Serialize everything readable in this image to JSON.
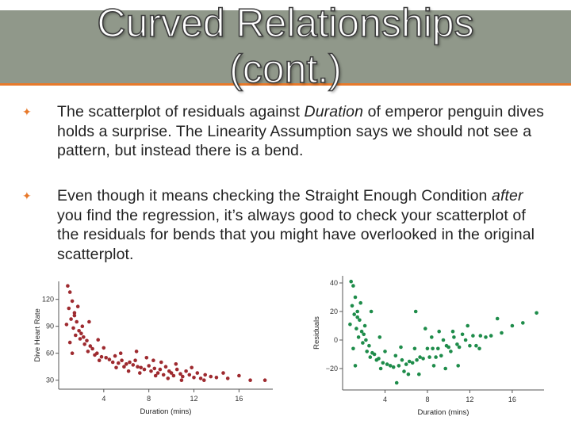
{
  "slide": {
    "title_line1": "Curved Relationships",
    "title_line2": "(cont.)",
    "colors": {
      "title_band": "#90988a",
      "accent": "#e8792a",
      "left_points": "#9e2a2f",
      "right_points": "#1e8c4a"
    },
    "bullet_icon": "scroll-bullet-icon",
    "bullet1": {
      "part1": "The scatterplot of residuals against ",
      "italic": "Duration",
      "part2": " of emperor penguin dives holds a surprise.  The Linearity Assumption says we should not see a pattern, but instead there is a bend."
    },
    "bullet2": {
      "part1": "Even though it means checking the Straight Enough Condition ",
      "italic": "after",
      "part2": " you find the regression, it’s always good to check your scatterplot of the residuals for bends that you might have overlooked in the original scatterplot."
    }
  },
  "chart_data": [
    {
      "type": "scatter",
      "title": "",
      "xlabel": "Duration (mins)",
      "ylabel": "Dive Heart Rate",
      "xlim": [
        0,
        19
      ],
      "ylim": [
        20,
        140
      ],
      "xticks": [
        "4",
        "8",
        "12",
        "16"
      ],
      "yticks": [
        "30",
        "60",
        "90",
        "120"
      ],
      "points": [
        [
          0.8,
          135
        ],
        [
          1.0,
          128
        ],
        [
          1.2,
          118
        ],
        [
          0.9,
          110
        ],
        [
          1.4,
          105
        ],
        [
          1.1,
          98
        ],
        [
          1.6,
          95
        ],
        [
          0.7,
          92
        ],
        [
          1.3,
          88
        ],
        [
          1.8,
          85
        ],
        [
          2.0,
          82
        ],
        [
          1.5,
          80
        ],
        [
          2.2,
          78
        ],
        [
          1.9,
          76
        ],
        [
          2.5,
          74
        ],
        [
          1.0,
          72
        ],
        [
          2.3,
          70
        ],
        [
          1.4,
          102
        ],
        [
          2.1,
          90
        ],
        [
          1.7,
          112
        ],
        [
          2.8,
          68
        ],
        [
          3.0,
          65
        ],
        [
          2.6,
          62
        ],
        [
          3.4,
          60
        ],
        [
          1.2,
          60
        ],
        [
          3.2,
          58
        ],
        [
          3.8,
          56
        ],
        [
          4.2,
          55
        ],
        [
          4.5,
          53
        ],
        [
          3.6,
          52
        ],
        [
          4.8,
          50
        ],
        [
          5.0,
          57
        ],
        [
          5.3,
          49
        ],
        [
          5.6,
          52
        ],
        [
          6.0,
          48
        ],
        [
          5.8,
          45
        ],
        [
          6.3,
          50
        ],
        [
          6.6,
          47
        ],
        [
          7.0,
          45
        ],
        [
          6.8,
          52
        ],
        [
          7.3,
          44
        ],
        [
          7.6,
          42
        ],
        [
          8.0,
          46
        ],
        [
          8.2,
          40
        ],
        [
          8.5,
          43
        ],
        [
          8.8,
          38
        ],
        [
          9.0,
          42
        ],
        [
          9.3,
          36
        ],
        [
          9.5,
          45
        ],
        [
          9.8,
          40
        ],
        [
          10.0,
          38
        ],
        [
          10.2,
          35
        ],
        [
          10.5,
          42
        ],
        [
          10.8,
          37
        ],
        [
          11.0,
          34
        ],
        [
          11.3,
          40
        ],
        [
          11.6,
          36
        ],
        [
          12.0,
          33
        ],
        [
          12.3,
          38
        ],
        [
          12.6,
          32
        ],
        [
          13.0,
          36
        ],
        [
          13.5,
          34
        ],
        [
          14.0,
          33
        ],
        [
          15.0,
          32
        ],
        [
          16.0,
          35
        ],
        [
          7.8,
          55
        ],
        [
          9.1,
          50
        ],
        [
          10.4,
          48
        ],
        [
          6.2,
          40
        ],
        [
          8.6,
          35
        ],
        [
          11.8,
          44
        ],
        [
          3.5,
          75
        ],
        [
          2.7,
          95
        ],
        [
          4.0,
          66
        ],
        [
          5.5,
          60
        ],
        [
          7.2,
          38
        ],
        [
          9.7,
          32
        ],
        [
          8.4,
          52
        ],
        [
          10.9,
          30
        ],
        [
          17.0,
          30
        ],
        [
          18.3,
          30
        ],
        [
          12.9,
          30
        ],
        [
          14.6,
          38
        ],
        [
          6.9,
          62
        ],
        [
          5.1,
          44
        ]
      ]
    },
    {
      "type": "scatter",
      "title": "",
      "xlabel": "Duration (mins)",
      "ylabel": "Residuals",
      "xlim": [
        0,
        19
      ],
      "ylim": [
        -35,
        45
      ],
      "xticks": [
        "4",
        "8",
        "12",
        "16"
      ],
      "yticks": [
        "40",
        "20",
        "0",
        "−20"
      ],
      "points": [
        [
          0.8,
          41
        ],
        [
          1.0,
          38
        ],
        [
          1.2,
          30
        ],
        [
          0.9,
          24
        ],
        [
          1.4,
          20
        ],
        [
          1.1,
          18
        ],
        [
          1.6,
          14
        ],
        [
          0.7,
          11
        ],
        [
          1.3,
          8
        ],
        [
          1.8,
          6
        ],
        [
          2.0,
          4
        ],
        [
          1.5,
          2
        ],
        [
          2.2,
          0
        ],
        [
          1.9,
          -2
        ],
        [
          2.5,
          -4
        ],
        [
          1.0,
          -6
        ],
        [
          2.3,
          -8
        ],
        [
          1.4,
          16
        ],
        [
          2.1,
          10
        ],
        [
          1.7,
          26
        ],
        [
          2.8,
          -9
        ],
        [
          3.0,
          -10
        ],
        [
          2.6,
          -12
        ],
        [
          3.4,
          -13
        ],
        [
          1.2,
          -18
        ],
        [
          3.2,
          -14
        ],
        [
          3.8,
          -16
        ],
        [
          4.2,
          -17
        ],
        [
          4.5,
          -18
        ],
        [
          3.6,
          -20
        ],
        [
          4.8,
          -19
        ],
        [
          5.0,
          -11
        ],
        [
          5.3,
          -18
        ],
        [
          5.6,
          -14
        ],
        [
          6.0,
          -17
        ],
        [
          5.8,
          -22
        ],
        [
          6.3,
          -15
        ],
        [
          6.6,
          -16
        ],
        [
          7.0,
          -14
        ],
        [
          6.8,
          -6
        ],
        [
          7.3,
          -12
        ],
        [
          7.6,
          -13
        ],
        [
          8.0,
          -6
        ],
        [
          8.2,
          -12
        ],
        [
          8.5,
          -6
        ],
        [
          8.8,
          -12
        ],
        [
          9.0,
          -6
        ],
        [
          9.3,
          -11
        ],
        [
          9.5,
          0
        ],
        [
          9.8,
          -4
        ],
        [
          10.0,
          -5
        ],
        [
          10.2,
          -8
        ],
        [
          10.5,
          2
        ],
        [
          10.8,
          -3
        ],
        [
          11.0,
          -5
        ],
        [
          11.3,
          4
        ],
        [
          11.6,
          0
        ],
        [
          12.0,
          -4
        ],
        [
          12.3,
          3
        ],
        [
          12.6,
          -4
        ],
        [
          13.0,
          3
        ],
        [
          13.5,
          2
        ],
        [
          14.0,
          3
        ],
        [
          15.0,
          5
        ],
        [
          16.0,
          10
        ],
        [
          7.8,
          8
        ],
        [
          9.1,
          6
        ],
        [
          10.4,
          6
        ],
        [
          6.2,
          -24
        ],
        [
          8.6,
          -18
        ],
        [
          11.8,
          10
        ],
        [
          3.5,
          2
        ],
        [
          2.7,
          20
        ],
        [
          4.0,
          -8
        ],
        [
          5.5,
          -5
        ],
        [
          7.2,
          -24
        ],
        [
          9.7,
          -20
        ],
        [
          8.4,
          2
        ],
        [
          10.9,
          -18
        ],
        [
          17.0,
          12
        ],
        [
          18.3,
          19
        ],
        [
          12.9,
          -6
        ],
        [
          14.6,
          15
        ],
        [
          6.9,
          20
        ],
        [
          5.1,
          -30
        ]
      ]
    }
  ]
}
